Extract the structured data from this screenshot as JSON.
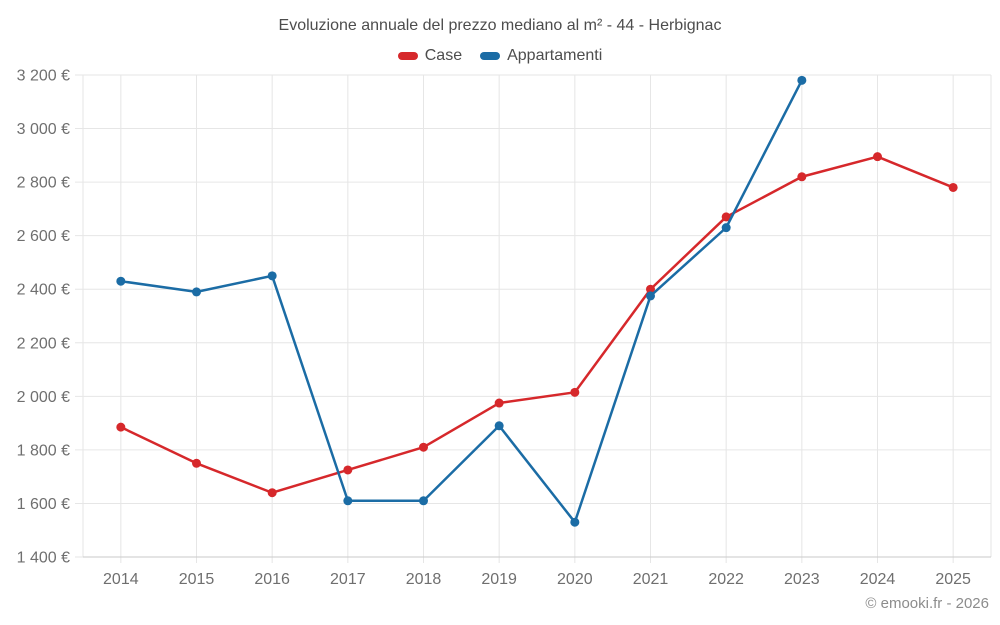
{
  "chart_data": {
    "type": "line",
    "title": "Evoluzione annuale del prezzo mediano al m² - 44 - Herbignac",
    "x_categories": [
      "2014",
      "2015",
      "2016",
      "2017",
      "2018",
      "2019",
      "2020",
      "2021",
      "2022",
      "2023",
      "2024",
      "2025"
    ],
    "series": [
      {
        "name": "Case",
        "color": "#d6282b",
        "values": [
          1885,
          1750,
          1640,
          1725,
          1810,
          1975,
          2015,
          2400,
          2670,
          2820,
          2895,
          2780
        ]
      },
      {
        "name": "Appartamenti",
        "color": "#1b6ca5",
        "values": [
          2430,
          2390,
          2450,
          1610,
          1610,
          1890,
          1530,
          2375,
          2630,
          3180,
          null,
          null
        ]
      }
    ],
    "ylim": [
      1400,
      3200
    ],
    "yticks": {
      "values": [
        1400,
        1600,
        1800,
        2000,
        2200,
        2400,
        2600,
        2800,
        3000,
        3200
      ],
      "labels": [
        "1 400 €",
        "1 600 €",
        "1 800 €",
        "2 000 €",
        "2 200 €",
        "2 400 €",
        "2 600 €",
        "2 800 €",
        "3 000 €",
        "3 200 €"
      ]
    },
    "grid": true,
    "legend_position": "top",
    "unit": "€"
  },
  "footer": {
    "credit": "© emooki.fr - 2026"
  },
  "colors": {
    "grid": "#e6e6e6",
    "axis_line": "#c9c9c9",
    "axis_text": "#6f6f6f",
    "title_text": "#4d4d4d",
    "credit_text": "#8c8c8c"
  }
}
